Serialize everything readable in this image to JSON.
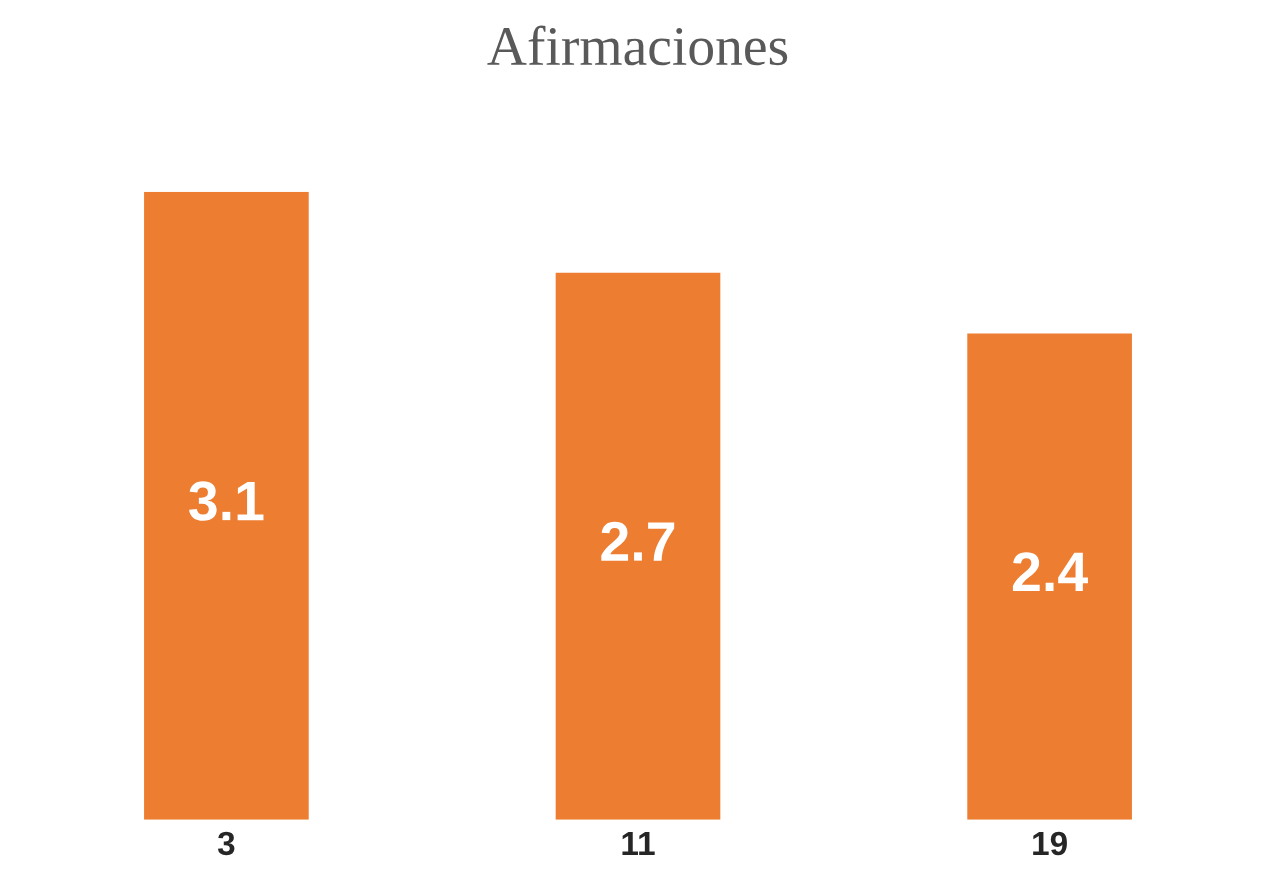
{
  "chart_data": {
    "type": "bar",
    "title": "Afirmaciones",
    "categories": [
      "3",
      "11",
      "19"
    ],
    "values": [
      3.1,
      2.7,
      2.4
    ],
    "color": "#ed7d31",
    "data_labels": true,
    "grid": false,
    "legend": false
  }
}
